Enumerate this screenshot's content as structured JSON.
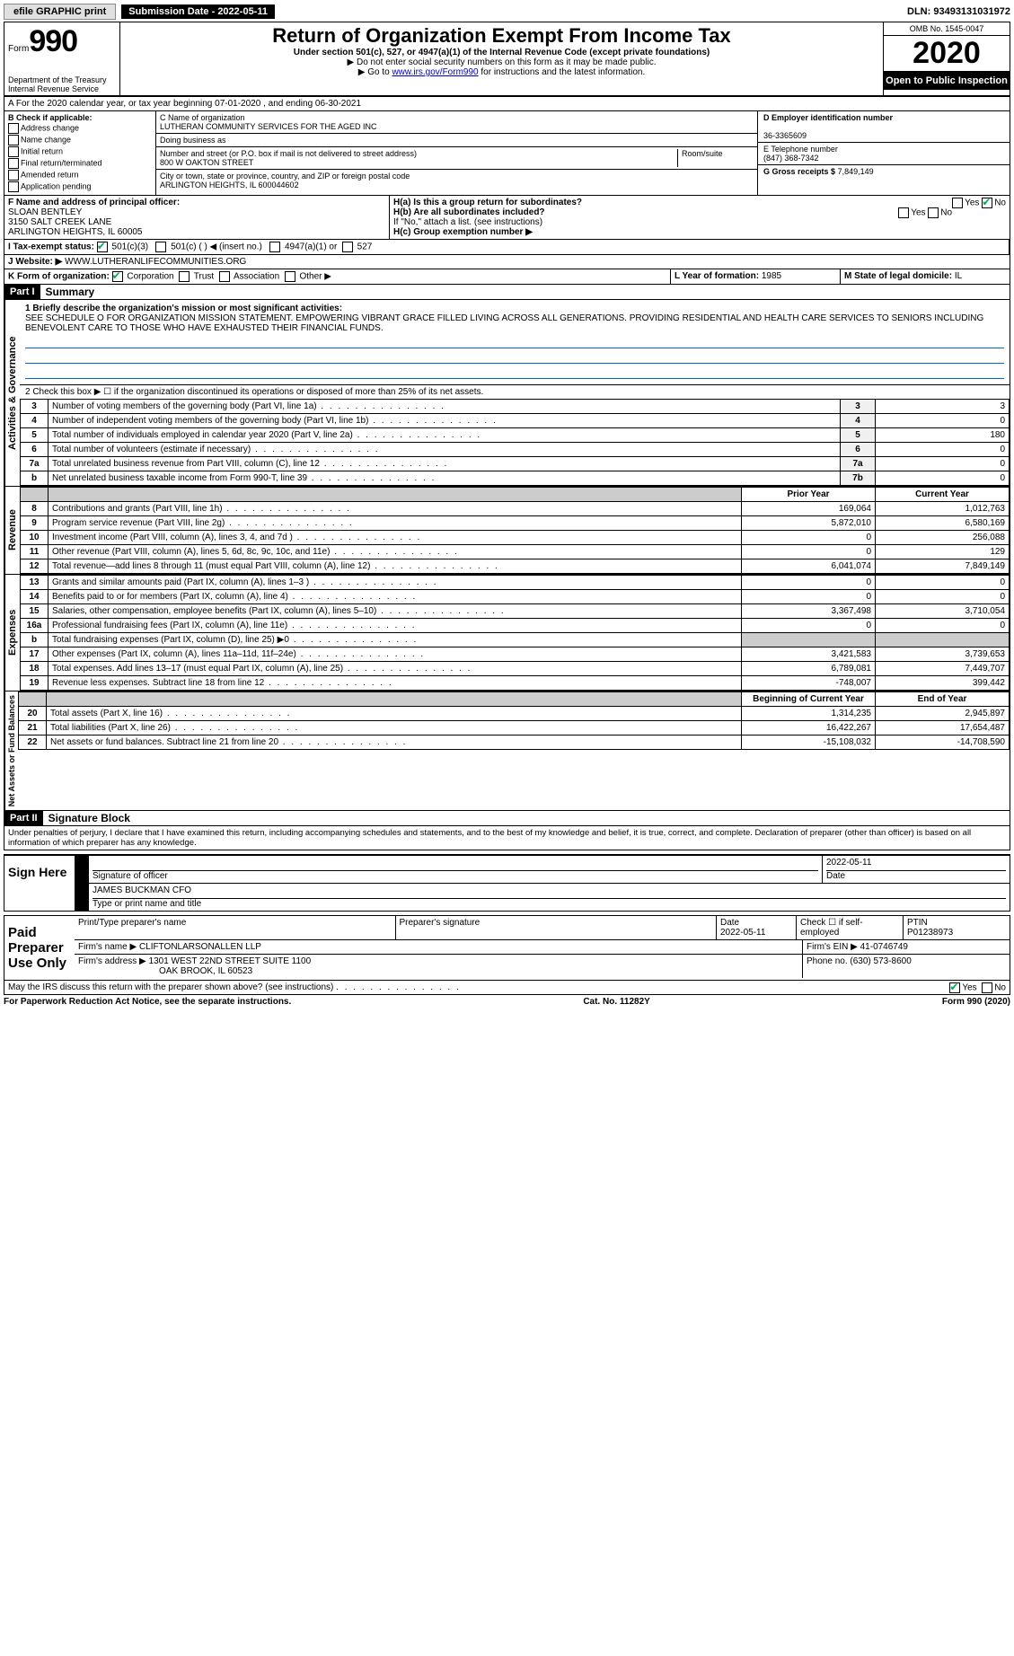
{
  "top": {
    "efile": "efile GRAPHIC print",
    "submission_label": "Submission Date - 2022-05-11",
    "dln": "DLN: 93493131031972"
  },
  "header": {
    "form_word": "Form",
    "form_num": "990",
    "dept": "Department of the Treasury\nInternal Revenue Service",
    "title": "Return of Organization Exempt From Income Tax",
    "subtitle": "Under section 501(c), 527, or 4947(a)(1) of the Internal Revenue Code (except private foundations)",
    "note1": "▶ Do not enter social security numbers on this form as it may be made public.",
    "note2_pre": "▶ Go to ",
    "note2_link": "www.irs.gov/Form990",
    "note2_post": " for instructions and the latest information.",
    "omb": "OMB No. 1545-0047",
    "year": "2020",
    "open": "Open to Public Inspection"
  },
  "period": "A For the 2020 calendar year, or tax year beginning 07-01-2020   , and ending 06-30-2021",
  "section_b": {
    "label": "B Check if applicable:",
    "items": [
      "Address change",
      "Name change",
      "Initial return",
      "Final return/terminated",
      "Amended return",
      "Application pending"
    ]
  },
  "section_c": {
    "name_label": "C Name of organization",
    "name": "LUTHERAN COMMUNITY SERVICES FOR THE AGED INC",
    "dba_label": "Doing business as",
    "dba": "",
    "street_label": "Number and street (or P.O. box if mail is not delivered to street address)",
    "room_label": "Room/suite",
    "street": "800 W OAKTON STREET",
    "city_label": "City or town, state or province, country, and ZIP or foreign postal code",
    "city": "ARLINGTON HEIGHTS, IL  600044602"
  },
  "section_d": {
    "label": "D Employer identification number",
    "value": "36-3365609"
  },
  "section_e": {
    "label": "E Telephone number",
    "value": "(847) 368-7342"
  },
  "section_g": {
    "label": "G Gross receipts $",
    "value": "7,849,149"
  },
  "section_f": {
    "label": "F Name and address of principal officer:",
    "name": "SLOAN BENTLEY",
    "addr1": "3150 SALT CREEK LANE",
    "addr2": "ARLINGTON HEIGHTS, IL  60005"
  },
  "section_h": {
    "ha_label": "H(a)  Is this a group return for subordinates?",
    "hb_label": "H(b)  Are all subordinates included?",
    "hb_note": "If \"No,\" attach a list. (see instructions)",
    "hc_label": "H(c)  Group exemption number ▶",
    "yes": "Yes",
    "no": "No"
  },
  "tax_status": {
    "label": "I  Tax-exempt status:",
    "opt1": "501(c)(3)",
    "opt2": "501(c) (   ) ◀ (insert no.)",
    "opt3": "4947(a)(1) or",
    "opt4": "527"
  },
  "website": {
    "label": "J  Website: ▶",
    "value": "WWW.LUTHERANLIFECOMMUNITIES.ORG"
  },
  "section_k": {
    "label": "K Form of organization:",
    "opts": [
      "Corporation",
      "Trust",
      "Association",
      "Other ▶"
    ]
  },
  "section_l": {
    "label": "L Year of formation:",
    "value": "1985"
  },
  "section_m": {
    "label": "M State of legal domicile:",
    "value": "IL"
  },
  "part1": {
    "header": "Part I",
    "title": "Summary",
    "line1_label": "1  Briefly describe the organization's mission or most significant activities:",
    "line1_text": "SEE SCHEDULE O FOR ORGANIZATION MISSION STATEMENT. EMPOWERING VIBRANT GRACE FILLED LIVING ACROSS ALL GENERATIONS. PROVIDING RESIDENTIAL AND HEALTH CARE SERVICES TO SENIORS INCLUDING BENEVOLENT CARE TO THOSE WHO HAVE EXHAUSTED THEIR FINANCIAL FUNDS.",
    "line2": "2   Check this box ▶ ☐  if the organization discontinued its operations or disposed of more than 25% of its net assets.",
    "gov_rows": [
      {
        "n": "3",
        "label": "Number of voting members of the governing body (Part VI, line 1a)",
        "box": "3",
        "val": "3"
      },
      {
        "n": "4",
        "label": "Number of independent voting members of the governing body (Part VI, line 1b)",
        "box": "4",
        "val": "0"
      },
      {
        "n": "5",
        "label": "Total number of individuals employed in calendar year 2020 (Part V, line 2a)",
        "box": "5",
        "val": "180"
      },
      {
        "n": "6",
        "label": "Total number of volunteers (estimate if necessary)",
        "box": "6",
        "val": "0"
      },
      {
        "n": "7a",
        "label": "Total unrelated business revenue from Part VIII, column (C), line 12",
        "box": "7a",
        "val": "0"
      },
      {
        "n": "b",
        "label": "Net unrelated business taxable income from Form 990-T, line 39",
        "box": "7b",
        "val": "0"
      }
    ],
    "prior_hdr": "Prior Year",
    "curr_hdr": "Current Year",
    "revenue_rows": [
      {
        "n": "8",
        "label": "Contributions and grants (Part VIII, line 1h)",
        "prior": "169,064",
        "curr": "1,012,763"
      },
      {
        "n": "9",
        "label": "Program service revenue (Part VIII, line 2g)",
        "prior": "5,872,010",
        "curr": "6,580,169"
      },
      {
        "n": "10",
        "label": "Investment income (Part VIII, column (A), lines 3, 4, and 7d )",
        "prior": "0",
        "curr": "256,088"
      },
      {
        "n": "11",
        "label": "Other revenue (Part VIII, column (A), lines 5, 6d, 8c, 9c, 10c, and 11e)",
        "prior": "0",
        "curr": "129"
      },
      {
        "n": "12",
        "label": "Total revenue—add lines 8 through 11 (must equal Part VIII, column (A), line 12)",
        "prior": "6,041,074",
        "curr": "7,849,149"
      }
    ],
    "expense_rows": [
      {
        "n": "13",
        "label": "Grants and similar amounts paid (Part IX, column (A), lines 1–3 )",
        "prior": "0",
        "curr": "0"
      },
      {
        "n": "14",
        "label": "Benefits paid to or for members (Part IX, column (A), line 4)",
        "prior": "0",
        "curr": "0"
      },
      {
        "n": "15",
        "label": "Salaries, other compensation, employee benefits (Part IX, column (A), lines 5–10)",
        "prior": "3,367,498",
        "curr": "3,710,054"
      },
      {
        "n": "16a",
        "label": "Professional fundraising fees (Part IX, column (A), line 11e)",
        "prior": "0",
        "curr": "0"
      },
      {
        "n": "b",
        "label": "Total fundraising expenses (Part IX, column (D), line 25) ▶0",
        "prior": "",
        "curr": ""
      },
      {
        "n": "17",
        "label": "Other expenses (Part IX, column (A), lines 11a–11d, 11f–24e)",
        "prior": "3,421,583",
        "curr": "3,739,653"
      },
      {
        "n": "18",
        "label": "Total expenses. Add lines 13–17 (must equal Part IX, column (A), line 25)",
        "prior": "6,789,081",
        "curr": "7,449,707"
      },
      {
        "n": "19",
        "label": "Revenue less expenses. Subtract line 18 from line 12",
        "prior": "-748,007",
        "curr": "399,442"
      }
    ],
    "na_hdr1": "Beginning of Current Year",
    "na_hdr2": "End of Year",
    "na_rows": [
      {
        "n": "20",
        "label": "Total assets (Part X, line 16)",
        "prior": "1,314,235",
        "curr": "2,945,897"
      },
      {
        "n": "21",
        "label": "Total liabilities (Part X, line 26)",
        "prior": "16,422,267",
        "curr": "17,654,487"
      },
      {
        "n": "22",
        "label": "Net assets or fund balances. Subtract line 21 from line 20",
        "prior": "-15,108,032",
        "curr": "-14,708,590"
      }
    ],
    "vtabs": {
      "gov": "Activities & Governance",
      "rev": "Revenue",
      "exp": "Expenses",
      "na": "Net Assets or Fund Balances"
    }
  },
  "part2": {
    "header": "Part II",
    "title": "Signature Block",
    "penalties": "Under penalties of perjury, I declare that I have examined this return, including accompanying schedules and statements, and to the best of my knowledge and belief, it is true, correct, and complete. Declaration of preparer (other than officer) is based on all information of which preparer has any knowledge.",
    "sign_here": "Sign Here",
    "sig_officer": "Signature of officer",
    "sig_date": "2022-05-11",
    "date_label": "Date",
    "officer_name": "JAMES BUCKMAN  CFO",
    "type_label": "Type or print name and title",
    "paid": "Paid Preparer Use Only",
    "print_label": "Print/Type preparer's name",
    "prep_sig_label": "Preparer's signature",
    "prep_date": "2022-05-11",
    "check_self": "Check ☐ if self-employed",
    "ptin_label": "PTIN",
    "ptin": "P01238973",
    "firm_name_label": "Firm's name    ▶",
    "firm_name": "CLIFTONLARSONALLEN LLP",
    "firm_ein_label": "Firm's EIN ▶",
    "firm_ein": "41-0746749",
    "firm_addr_label": "Firm's address ▶",
    "firm_addr1": "1301 WEST 22ND STREET SUITE 1100",
    "firm_addr2": "OAK BROOK, IL  60523",
    "phone_label": "Phone no.",
    "phone": "(630) 573-8600",
    "discuss": "May the IRS discuss this return with the preparer shown above? (see instructions)"
  },
  "footer": {
    "left": "For Paperwork Reduction Act Notice, see the separate instructions.",
    "mid": "Cat. No. 11282Y",
    "right_pre": "Form ",
    "right_num": "990",
    "right_post": " (2020)"
  }
}
